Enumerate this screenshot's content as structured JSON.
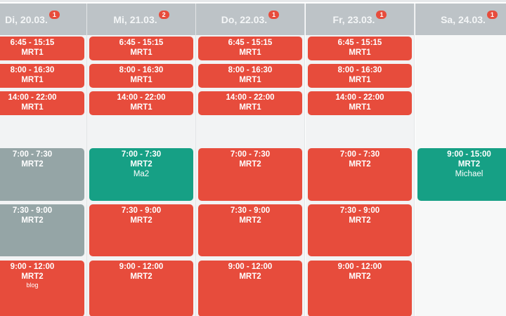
{
  "colors": {
    "open": "#e74c3c",
    "assigned": "#16a085",
    "past": "#95a5a6",
    "header": "#bdc3c7"
  },
  "days": [
    {
      "label": "Di, 20.03.",
      "badge": "1",
      "shifts": [
        {
          "time": "6:45 - 15:15",
          "place": "MRT1",
          "status": "open",
          "row": 0
        },
        {
          "time": "8:00 - 16:30",
          "place": "MRT1",
          "status": "open",
          "row": 1
        },
        {
          "time": "14:00 - 22:00",
          "place": "MRT1",
          "status": "open",
          "row": 2
        },
        {
          "time": "7:00 - 7:30",
          "place": "MRT2",
          "status": "past",
          "row": 3
        },
        {
          "time": "7:30 - 9:00",
          "place": "MRT2",
          "status": "past",
          "row": 4
        },
        {
          "time": "9:00 - 12:00",
          "place": "MRT2",
          "note": "blog",
          "status": "open",
          "row": 5
        }
      ]
    },
    {
      "label": "Mi, 21.03.",
      "badge": "2",
      "shifts": [
        {
          "time": "6:45 - 15:15",
          "place": "MRT1",
          "status": "open",
          "row": 0
        },
        {
          "time": "8:00 - 16:30",
          "place": "MRT1",
          "status": "open",
          "row": 1
        },
        {
          "time": "14:00 - 22:00",
          "place": "MRT1",
          "status": "open",
          "row": 2
        },
        {
          "time": "7:00 - 7:30",
          "place": "MRT2",
          "person": "Ma2",
          "status": "assigned",
          "row": 3
        },
        {
          "time": "7:30 - 9:00",
          "place": "MRT2",
          "status": "open",
          "row": 4
        },
        {
          "time": "9:00 - 12:00",
          "place": "MRT2",
          "status": "open",
          "row": 5
        }
      ]
    },
    {
      "label": "Do, 22.03.",
      "badge": "1",
      "shifts": [
        {
          "time": "6:45 - 15:15",
          "place": "MRT1",
          "status": "open",
          "row": 0
        },
        {
          "time": "8:00 - 16:30",
          "place": "MRT1",
          "status": "open",
          "row": 1
        },
        {
          "time": "14:00 - 22:00",
          "place": "MRT1",
          "status": "open",
          "row": 2
        },
        {
          "time": "7:00 - 7:30",
          "place": "MRT2",
          "status": "open",
          "row": 3
        },
        {
          "time": "7:30 - 9:00",
          "place": "MRT2",
          "status": "open",
          "row": 4
        },
        {
          "time": "9:00 - 12:00",
          "place": "MRT2",
          "status": "open",
          "row": 5
        }
      ]
    },
    {
      "label": "Fr, 23.03.",
      "badge": "1",
      "shifts": [
        {
          "time": "6:45 - 15:15",
          "place": "MRT1",
          "status": "open",
          "row": 0
        },
        {
          "time": "8:00 - 16:30",
          "place": "MRT1",
          "status": "open",
          "row": 1
        },
        {
          "time": "14:00 - 22:00",
          "place": "MRT1",
          "status": "open",
          "row": 2
        },
        {
          "time": "7:00 - 7:30",
          "place": "MRT2",
          "status": "open",
          "row": 3
        },
        {
          "time": "7:30 - 9:00",
          "place": "MRT2",
          "status": "open",
          "row": 4
        },
        {
          "time": "9:00 - 12:00",
          "place": "MRT2",
          "status": "open",
          "row": 5
        }
      ]
    },
    {
      "label": "Sa, 24.03.",
      "badge": "1",
      "weekend": true,
      "shifts": [
        {
          "time": "9:00 - 15:00",
          "place": "MRT2",
          "person": "Michael",
          "status": "assigned",
          "row": 3
        }
      ]
    }
  ]
}
